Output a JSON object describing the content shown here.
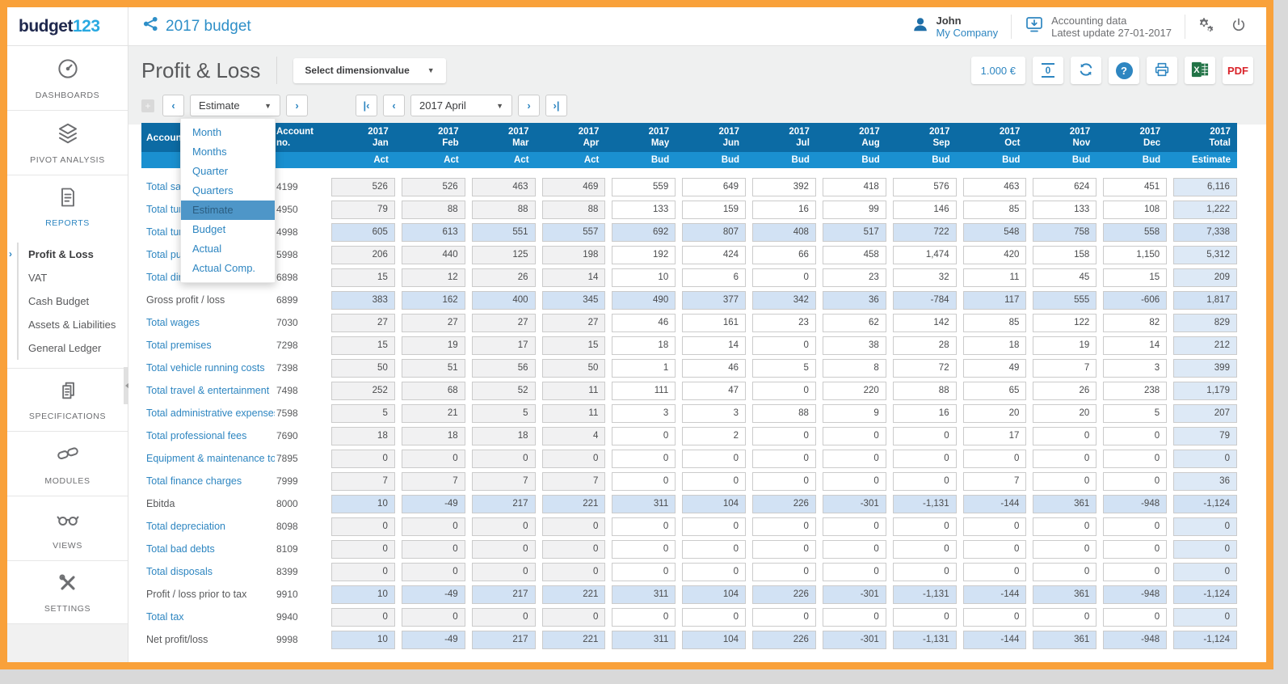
{
  "logo": {
    "text_dark": "budget",
    "text_blue": "123"
  },
  "header": {
    "doc_title": "2017 budget",
    "user_name": "John",
    "company": "My Company",
    "accounting_line1": "Accounting data",
    "accounting_line2": "Latest update 27-01-2017"
  },
  "toolbar": {
    "page_title": "Profit & Loss",
    "dimension_button": "Select dimensionvalue",
    "currency_button": "1.000 €",
    "decimals_icon": "0",
    "help_label": "?",
    "pdf_label": "PDF"
  },
  "nav": {
    "period_type_value": "Estimate",
    "period_type_options": [
      "Month",
      "Months",
      "Quarter",
      "Quarters",
      "Estimate",
      "Budget",
      "Actual",
      "Actual Comp."
    ],
    "selected_option_index": 4,
    "period_value": "2017 April",
    "glyphs": {
      "plus": "+",
      "prev": "‹",
      "next": "›",
      "first": "|‹",
      "last": "›|",
      "caret": "▾"
    }
  },
  "sidebar": {
    "sections": [
      {
        "label": "DASHBOARDS",
        "icon": "gauge-icon"
      },
      {
        "label": "PIVOT ANALYSIS",
        "icon": "layers-icon"
      },
      {
        "label": "REPORTS",
        "icon": "report-icon",
        "active": true
      },
      {
        "label": "SPECIFICATIONS",
        "icon": "documents-icon"
      },
      {
        "label": "MODULES",
        "icon": "chain-icon"
      },
      {
        "label": "VIEWS",
        "icon": "glasses-icon"
      },
      {
        "label": "SETTINGS",
        "icon": "tools-icon"
      }
    ],
    "reports_menu": [
      {
        "label": "Profit & Loss",
        "active": true
      },
      {
        "label": "VAT",
        "active": false
      },
      {
        "label": "Cash Budget",
        "active": false
      },
      {
        "label": "Assets & Liabilities",
        "active": false
      },
      {
        "label": "General Ledger",
        "active": false
      }
    ]
  },
  "colors": {
    "frame": "#F9A13A",
    "table_header_dark": "#0C6BA4",
    "table_header_light": "#1A90D0",
    "link_blue": "#2E86C1",
    "highlight_row": "#D2E2F4",
    "total_column": "#DDE9F6",
    "actual_cell": "#F1F1F2"
  },
  "table": {
    "col_description": "Account description",
    "col_account": "Account no.",
    "year": "2017",
    "months": [
      {
        "label": "Jan",
        "type": "Act"
      },
      {
        "label": "Feb",
        "type": "Act"
      },
      {
        "label": "Mar",
        "type": "Act"
      },
      {
        "label": "Apr",
        "type": "Act"
      },
      {
        "label": "May",
        "type": "Bud"
      },
      {
        "label": "Jun",
        "type": "Bud"
      },
      {
        "label": "Jul",
        "type": "Bud"
      },
      {
        "label": "Aug",
        "type": "Bud"
      },
      {
        "label": "Sep",
        "type": "Bud"
      },
      {
        "label": "Oct",
        "type": "Bud"
      },
      {
        "label": "Nov",
        "type": "Bud"
      },
      {
        "label": "Dec",
        "type": "Bud"
      }
    ],
    "total_label": "Total",
    "total_type": "Estimate",
    "rows": [
      {
        "label": "Total sales",
        "account": "4199",
        "link": true,
        "highlight": false,
        "values": [
          "526",
          "526",
          "463",
          "469",
          "559",
          "649",
          "392",
          "418",
          "576",
          "463",
          "624",
          "451"
        ],
        "total": "6,116"
      },
      {
        "label": "Total turnover other",
        "account": "4950",
        "link": true,
        "highlight": false,
        "values": [
          "79",
          "88",
          "88",
          "88",
          "133",
          "159",
          "16",
          "99",
          "146",
          "85",
          "133",
          "108"
        ],
        "total": "1,222"
      },
      {
        "label": "Total turnover",
        "account": "4998",
        "link": true,
        "highlight": true,
        "values": [
          "605",
          "613",
          "551",
          "557",
          "692",
          "807",
          "408",
          "517",
          "722",
          "548",
          "758",
          "558"
        ],
        "total": "7,338"
      },
      {
        "label": "Total purchases",
        "account": "5998",
        "link": true,
        "highlight": false,
        "values": [
          "206",
          "440",
          "125",
          "198",
          "192",
          "424",
          "66",
          "458",
          "1,474",
          "420",
          "158",
          "1,150"
        ],
        "total": "5,312"
      },
      {
        "label": "Total direct costs",
        "account": "6898",
        "link": true,
        "highlight": false,
        "values": [
          "15",
          "12",
          "26",
          "14",
          "10",
          "6",
          "0",
          "23",
          "32",
          "11",
          "45",
          "15"
        ],
        "total": "209"
      },
      {
        "label": "Gross profit / loss",
        "account": "6899",
        "link": false,
        "highlight": true,
        "values": [
          "383",
          "162",
          "400",
          "345",
          "490",
          "377",
          "342",
          "36",
          "-784",
          "117",
          "555",
          "-606"
        ],
        "total": "1,817"
      },
      {
        "label": "Total wages",
        "account": "7030",
        "link": true,
        "highlight": false,
        "values": [
          "27",
          "27",
          "27",
          "27",
          "46",
          "161",
          "23",
          "62",
          "142",
          "85",
          "122",
          "82"
        ],
        "total": "829"
      },
      {
        "label": "Total premises",
        "account": "7298",
        "link": true,
        "highlight": false,
        "values": [
          "15",
          "19",
          "17",
          "15",
          "18",
          "14",
          "0",
          "38",
          "28",
          "18",
          "19",
          "14"
        ],
        "total": "212"
      },
      {
        "label": "Total vehicle running costs",
        "account": "7398",
        "link": true,
        "highlight": false,
        "values": [
          "50",
          "51",
          "56",
          "50",
          "1",
          "46",
          "5",
          "8",
          "72",
          "49",
          "7",
          "3"
        ],
        "total": "399"
      },
      {
        "label": "Total travel & entertainment",
        "account": "7498",
        "link": true,
        "highlight": false,
        "values": [
          "252",
          "68",
          "52",
          "11",
          "111",
          "47",
          "0",
          "220",
          "88",
          "65",
          "26",
          "238"
        ],
        "total": "1,179"
      },
      {
        "label": "Total administrative expenses",
        "account": "7598",
        "link": true,
        "highlight": false,
        "values": [
          "5",
          "21",
          "5",
          "11",
          "3",
          "3",
          "88",
          "9",
          "16",
          "20",
          "20",
          "5"
        ],
        "total": "207"
      },
      {
        "label": "Total professional fees",
        "account": "7690",
        "link": true,
        "highlight": false,
        "values": [
          "18",
          "18",
          "18",
          "4",
          "0",
          "2",
          "0",
          "0",
          "0",
          "17",
          "0",
          "0"
        ],
        "total": "79"
      },
      {
        "label": "Equipment & maintenance total",
        "account": "7895",
        "link": true,
        "highlight": false,
        "values": [
          "0",
          "0",
          "0",
          "0",
          "0",
          "0",
          "0",
          "0",
          "0",
          "0",
          "0",
          "0"
        ],
        "total": "0"
      },
      {
        "label": "Total finance charges",
        "account": "7999",
        "link": true,
        "highlight": false,
        "values": [
          "7",
          "7",
          "7",
          "7",
          "0",
          "0",
          "0",
          "0",
          "0",
          "7",
          "0",
          "0"
        ],
        "total": "36"
      },
      {
        "label": "Ebitda",
        "account": "8000",
        "link": false,
        "highlight": true,
        "values": [
          "10",
          "-49",
          "217",
          "221",
          "311",
          "104",
          "226",
          "-301",
          "-1,131",
          "-144",
          "361",
          "-948"
        ],
        "total": "-1,124"
      },
      {
        "label": "Total depreciation",
        "account": "8098",
        "link": true,
        "highlight": false,
        "values": [
          "0",
          "0",
          "0",
          "0",
          "0",
          "0",
          "0",
          "0",
          "0",
          "0",
          "0",
          "0"
        ],
        "total": "0"
      },
      {
        "label": "Total bad debts",
        "account": "8109",
        "link": true,
        "highlight": false,
        "values": [
          "0",
          "0",
          "0",
          "0",
          "0",
          "0",
          "0",
          "0",
          "0",
          "0",
          "0",
          "0"
        ],
        "total": "0"
      },
      {
        "label": "Total disposals",
        "account": "8399",
        "link": true,
        "highlight": false,
        "values": [
          "0",
          "0",
          "0",
          "0",
          "0",
          "0",
          "0",
          "0",
          "0",
          "0",
          "0",
          "0"
        ],
        "total": "0"
      },
      {
        "label": "Profit / loss prior to tax",
        "account": "9910",
        "link": false,
        "highlight": true,
        "values": [
          "10",
          "-49",
          "217",
          "221",
          "311",
          "104",
          "226",
          "-301",
          "-1,131",
          "-144",
          "361",
          "-948"
        ],
        "total": "-1,124"
      },
      {
        "label": "Total tax",
        "account": "9940",
        "link": true,
        "highlight": false,
        "values": [
          "0",
          "0",
          "0",
          "0",
          "0",
          "0",
          "0",
          "0",
          "0",
          "0",
          "0",
          "0"
        ],
        "total": "0"
      },
      {
        "label": "Net profit/loss",
        "account": "9998",
        "link": false,
        "highlight": true,
        "values": [
          "10",
          "-49",
          "217",
          "221",
          "311",
          "104",
          "226",
          "-301",
          "-1,131",
          "-144",
          "361",
          "-948"
        ],
        "total": "-1,124"
      }
    ]
  }
}
